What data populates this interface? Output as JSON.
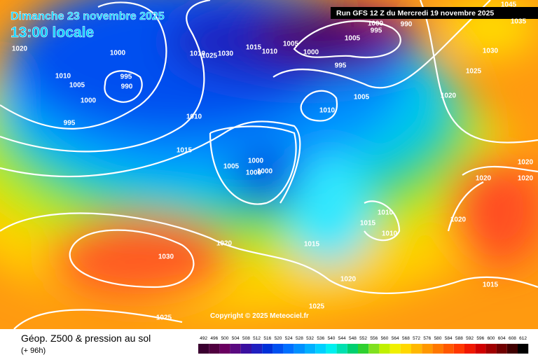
{
  "header": {
    "date": "Dimanche 23 novembre 2025",
    "time": "13:00 locale",
    "run": "Run GFS 12 Z du Mercredi 19 novembre 2025"
  },
  "copyright": "Copyright © 2025 Meteociel.fr",
  "legend": {
    "title": "Géop. Z500 & pression au sol",
    "subtitle": "(+ 96h)",
    "scale": [
      492,
      496,
      500,
      504,
      508,
      512,
      516,
      520,
      524,
      528,
      532,
      536,
      540,
      544,
      548,
      552,
      556,
      560,
      564,
      568,
      572,
      576,
      580,
      584,
      588,
      592,
      596,
      600,
      604,
      608,
      612
    ],
    "scale_colors": [
      "#3a0030",
      "#50003f",
      "#6a0060",
      "#5a0a80",
      "#3a10a0",
      "#2020c0",
      "#0030d8",
      "#0050f0",
      "#0070ff",
      "#0090ff",
      "#00b0ff",
      "#00d0ff",
      "#00f0f0",
      "#00e0b0",
      "#00d070",
      "#30d030",
      "#80e020",
      "#c0f000",
      "#f0f000",
      "#ffd800",
      "#ffb800",
      "#ff9800",
      "#ff7800",
      "#ff5800",
      "#ff3800",
      "#f01800",
      "#d00000",
      "#a00000",
      "#700000",
      "#400000",
      "#000000"
    ]
  },
  "isobars": [
    "1020",
    "1000",
    "995",
    "990",
    "1010",
    "1005",
    "1000",
    "995",
    "1010",
    "1025",
    "1030",
    "1015",
    "1010",
    "1005",
    "1000",
    "995",
    "1005",
    "1000",
    "995",
    "990",
    "1045",
    "1035",
    "1030",
    "1025",
    "1020",
    "1005",
    "1010",
    "1010",
    "1015",
    "1005",
    "1000",
    "1000",
    "1000",
    "1020",
    "1020",
    "1020",
    "1010",
    "1015",
    "1010",
    "1020",
    "1015",
    "1020",
    "1030",
    "1020",
    "1015",
    "1025",
    "1025"
  ]
}
